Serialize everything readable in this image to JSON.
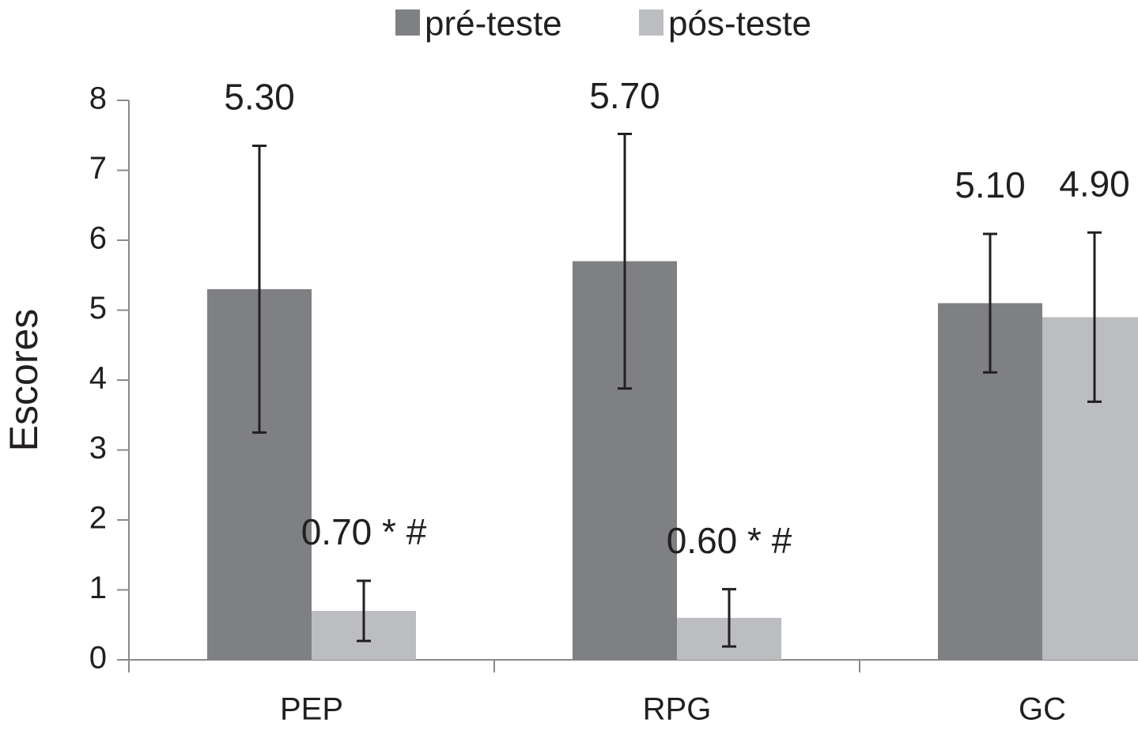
{
  "chart_data": {
    "type": "bar",
    "y_label": "Escores",
    "categories": [
      "PEP",
      "RPG",
      "GC"
    ],
    "series": [
      {
        "name": "pré-teste",
        "color": "#7f8083",
        "values": [
          5.3,
          5.7,
          5.1
        ],
        "value_labels": [
          "5.30",
          "5.70",
          "5.10"
        ],
        "error": [
          2.05,
          1.82,
          0.99
        ]
      },
      {
        "name": "pós-teste",
        "color": "#bcbdc0",
        "values": [
          0.7,
          0.6,
          4.9
        ],
        "value_labels": [
          "0.70 * #",
          "0.60 * #",
          "4.90"
        ],
        "error": [
          0.43,
          0.41,
          1.21
        ]
      }
    ],
    "ylim": [
      0,
      8
    ],
    "yticks": [
      0,
      1,
      2,
      3,
      4,
      5,
      6,
      7,
      8
    ],
    "grid": false,
    "legend": "top"
  }
}
